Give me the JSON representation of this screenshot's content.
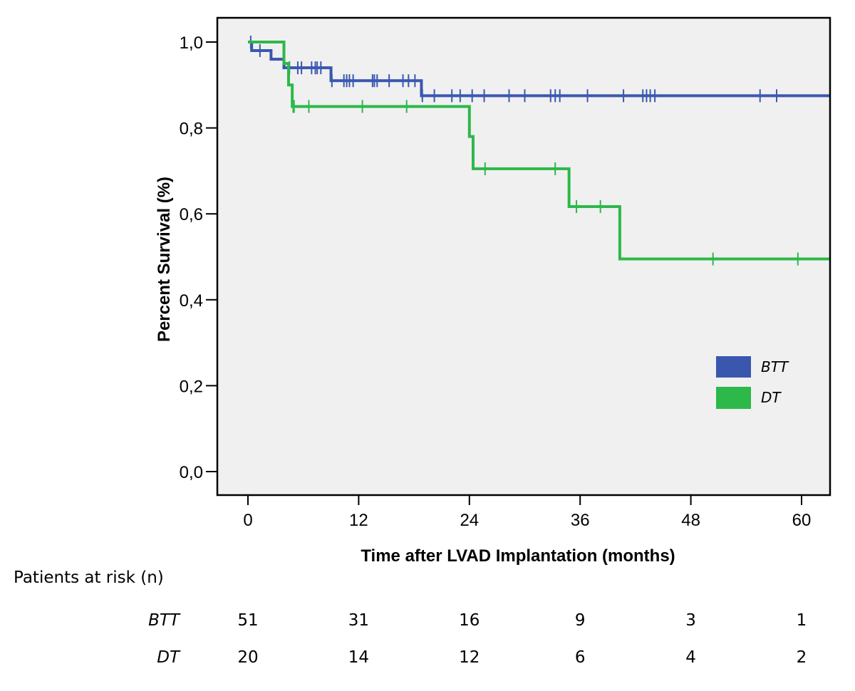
{
  "chart_data": {
    "type": "line",
    "subtype": "kaplan-meier-step",
    "title": "",
    "xlabel": "Time after LVAD Implantation (months)",
    "ylabel": "Percent Survival (%)",
    "xlim": [
      -3.5,
      63
    ],
    "ylim": [
      -0.055,
      1.055
    ],
    "x_ticks": [
      0,
      12,
      24,
      36,
      48,
      60
    ],
    "x_tick_labels": [
      "0",
      "12",
      "24",
      "36",
      "48",
      "60"
    ],
    "y_ticks": [
      0.0,
      0.2,
      0.4,
      0.6,
      0.8,
      1.0
    ],
    "y_tick_labels": [
      "0,0",
      "0,2",
      "0,4",
      "0,6",
      "0,8",
      "1,0"
    ],
    "grid": false,
    "legend_position": "right-middle",
    "series": [
      {
        "name": "BTT",
        "color": "#3A57B0",
        "steps": [
          [
            0,
            1.0
          ],
          [
            0.4,
            0.98
          ],
          [
            2.5,
            0.96
          ],
          [
            3.9,
            0.94
          ],
          [
            9.0,
            0.91
          ],
          [
            18.8,
            0.875
          ]
        ],
        "end_x": 63,
        "censored": [
          0.3,
          1.3,
          4.5,
          5.4,
          5.8,
          6.9,
          7.3,
          7.5,
          7.9,
          9.1,
          10.4,
          10.7,
          11.0,
          11.4,
          13.5,
          13.7,
          14.0,
          15.3,
          16.8,
          17.4,
          18.1,
          18.9,
          20.2,
          22.1,
          23.0,
          24.3,
          25.6,
          28.3,
          30.0,
          32.8,
          33.3,
          33.8,
          36.8,
          40.7,
          42.8,
          43.2,
          43.6,
          44.1,
          55.5,
          57.3
        ]
      },
      {
        "name": "DT",
        "color": "#2DB84A",
        "steps": [
          [
            0,
            1.0
          ],
          [
            3.9,
            0.95
          ],
          [
            4.4,
            0.9
          ],
          [
            4.8,
            0.85
          ],
          [
            24.0,
            0.78
          ],
          [
            24.4,
            0.705
          ],
          [
            34.8,
            0.617
          ],
          [
            40.3,
            0.495
          ]
        ],
        "end_x": 63,
        "censored": [
          4.9,
          5.0,
          6.6,
          12.4,
          17.2,
          25.7,
          33.3,
          35.6,
          38.2,
          50.4,
          59.6
        ]
      }
    ],
    "annotations": []
  },
  "legend": {
    "items": [
      {
        "label": "BTT",
        "color": "#3A57B0"
      },
      {
        "label": "DT",
        "color": "#2DB84A"
      }
    ]
  },
  "risk_table": {
    "title": "Patients at risk (n)",
    "times": [
      0,
      12,
      24,
      36,
      48,
      60
    ],
    "rows": [
      {
        "label": "BTT",
        "values": [
          "51",
          "31",
          "16",
          "9",
          "3",
          "1"
        ]
      },
      {
        "label": "DT",
        "values": [
          "20",
          "14",
          "12",
          "6",
          "4",
          "2"
        ]
      }
    ]
  },
  "style": {
    "plot_background": "#F0F0F0",
    "frame_color": "#000000"
  }
}
